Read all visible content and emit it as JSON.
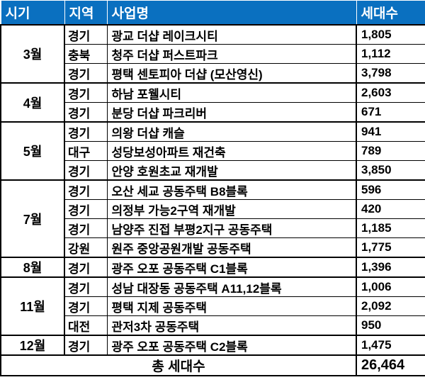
{
  "header": {
    "period": "시기",
    "region": "지역",
    "project": "사업명",
    "units": "세대수"
  },
  "header_color": "#0a70c0",
  "groups": [
    {
      "month": "3월",
      "rows": [
        {
          "region": "경기",
          "name": "광교 더샵 레이크시티",
          "units": "1,805"
        },
        {
          "region": "충북",
          "name": "청주 더샵 퍼스트파크",
          "units": "1,112"
        },
        {
          "region": "경기",
          "name": "평택 센토피아 더샵 (모산영신)",
          "units": "3,798"
        }
      ]
    },
    {
      "month": "4월",
      "rows": [
        {
          "region": "경기",
          "name": "하남 포웰시티",
          "units": "2,603"
        },
        {
          "region": "경기",
          "name": "분당 더샵 파크리버",
          "units": "671"
        }
      ]
    },
    {
      "month": "5월",
      "rows": [
        {
          "region": "경기",
          "name": "의왕 더샵 캐슬",
          "units": "941"
        },
        {
          "region": "대구",
          "name": "성당보성아파트 재건축",
          "units": "789"
        },
        {
          "region": "경기",
          "name": "안양 호원초교 재개발",
          "units": "3,850"
        }
      ]
    },
    {
      "month": "7월",
      "rows": [
        {
          "region": "경기",
          "name": "오산 세교 공동주택 B8블록",
          "units": "596"
        },
        {
          "region": "경기",
          "name": "의정부 가능2구역 재개발",
          "units": "420"
        },
        {
          "region": "경기",
          "name": "남양주 진접 부평2지구 공동주택",
          "units": "1,185"
        },
        {
          "region": "강원",
          "name": "원주 중앙공원개발 공동주택",
          "units": "1,775"
        }
      ]
    },
    {
      "month": "8월",
      "rows": [
        {
          "region": "경기",
          "name": "광주 오포 공동주택 C1블록",
          "units": "1,396"
        }
      ]
    },
    {
      "month": "11월",
      "rows": [
        {
          "region": "경기",
          "name": "성남 대장동 공동주택 A11,12블록",
          "units": "1,006"
        },
        {
          "region": "경기",
          "name": "평택 지제 공동주택",
          "units": "2,092"
        },
        {
          "region": "대전",
          "name": "관저3차 공동주택",
          "units": "950"
        }
      ]
    },
    {
      "month": "12월",
      "rows": [
        {
          "region": "경기",
          "name": "광주 오포 공동주택 C2블록",
          "units": "1,475"
        }
      ]
    }
  ],
  "total": {
    "label": "총 세대수",
    "value": "26,464"
  }
}
